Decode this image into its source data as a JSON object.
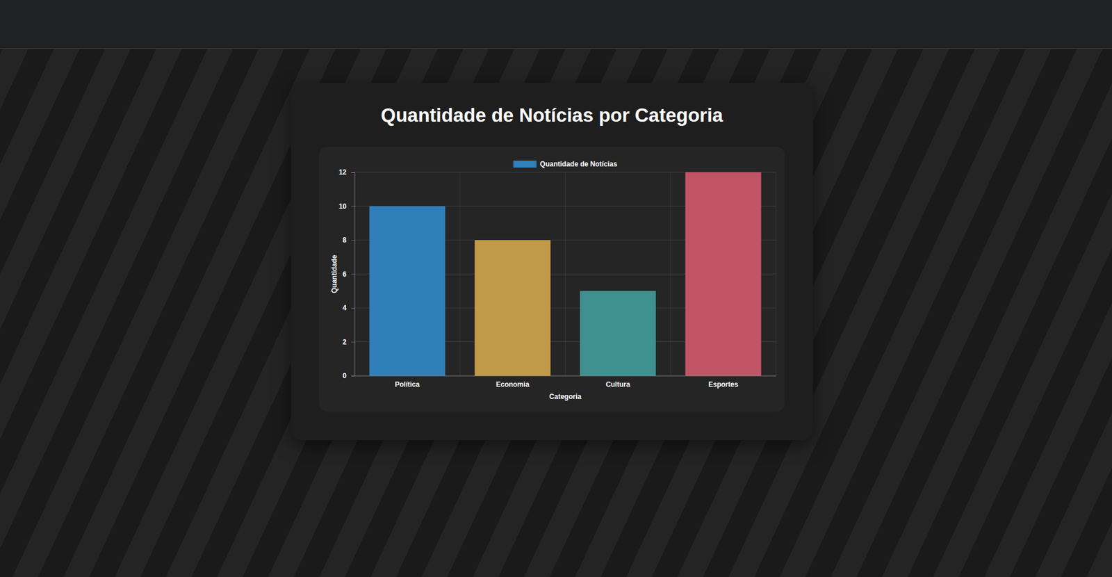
{
  "chart_data": {
    "type": "bar",
    "title": "Quantidade de Notícias por Categoria",
    "x_label": "Categoria",
    "y_label": "Quantidade",
    "categories": [
      "Política",
      "Economia",
      "Cultura",
      "Esportes"
    ],
    "series": [
      {
        "name": "Quantidade de Notícias",
        "values": [
          10,
          8,
          5,
          12
        ],
        "colors": [
          "#2f7fb8",
          "#c09a48",
          "#3f9190",
          "#c25468"
        ]
      }
    ],
    "ylim": [
      0,
      12
    ],
    "yticks": [
      0,
      2,
      4,
      6,
      8,
      10,
      12
    ],
    "grid": true,
    "legend": "top"
  }
}
